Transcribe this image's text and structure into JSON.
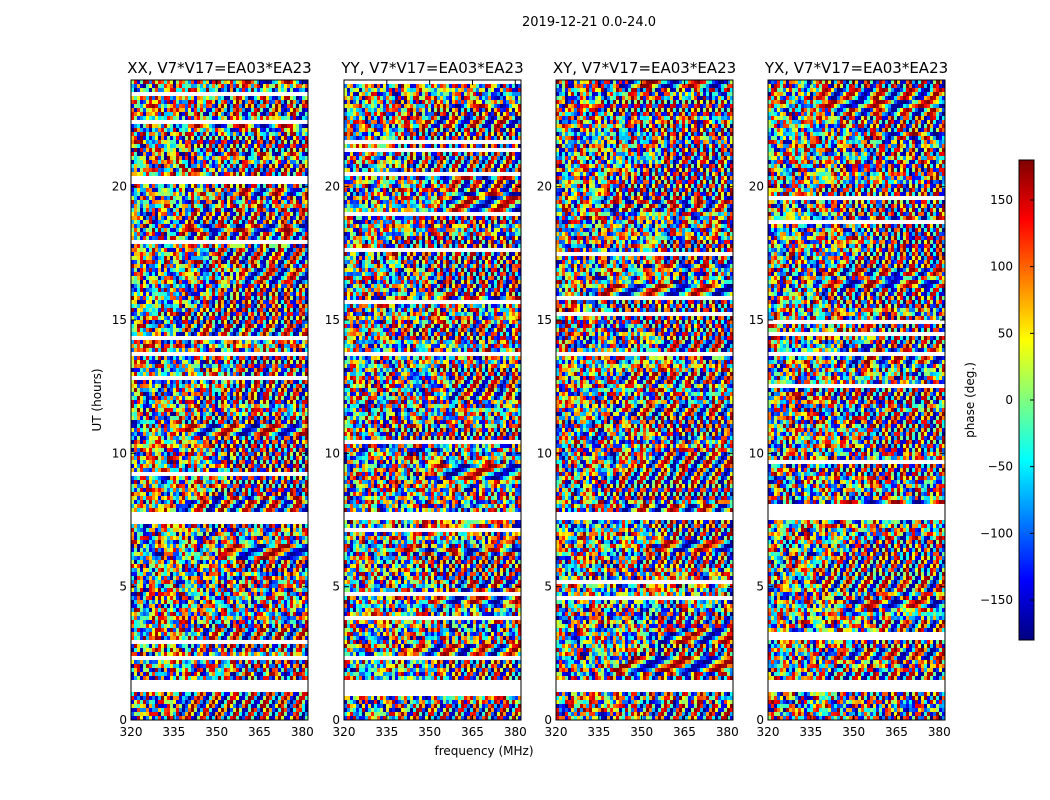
{
  "suptitle": "2019-12-21 0.0-24.0",
  "chart_data": {
    "type": "heatmap",
    "xlabel": "frequency (MHz)",
    "ylabel": "UT (hours)",
    "xlim": [
      320,
      382
    ],
    "ylim": [
      0,
      24
    ],
    "xticks": [
      "320",
      "335",
      "350",
      "365",
      "380"
    ],
    "xtick_values": [
      320,
      335,
      350,
      365,
      380
    ],
    "yticks": [
      "0",
      "5",
      "10",
      "15",
      "20"
    ],
    "ytick_values": [
      0,
      5,
      10,
      15,
      20
    ],
    "panels": [
      {
        "title": "XX, V7*V17=EA03*EA23",
        "seed": 11
      },
      {
        "title": "YY, V7*V17=EA03*EA23",
        "seed": 23
      },
      {
        "title": "XY, V7*V17=EA03*EA23",
        "seed": 37
      },
      {
        "title": "YX, V7*V17=EA03*EA23",
        "seed": 53
      }
    ],
    "flagged_ut_ranges": [
      [
        1.0,
        1.55
      ],
      [
        7.45,
        7.75
      ],
      [
        13.7,
        13.85
      ],
      [
        19.0,
        19.1
      ]
    ],
    "colorbar": {
      "label": "phase (deg.)",
      "range": [
        -180,
        180
      ],
      "ticks": [
        "150",
        "100",
        "50",
        "0",
        "−50",
        "−100",
        "−150"
      ],
      "tick_values": [
        150,
        100,
        50,
        0,
        -50,
        -100,
        -150
      ],
      "colormap": [
        "#00007f",
        "#0000ff",
        "#007fff",
        "#00ffff",
        "#7fff7f",
        "#ffff00",
        "#ff7f00",
        "#ff0000",
        "#7f0000"
      ]
    }
  }
}
